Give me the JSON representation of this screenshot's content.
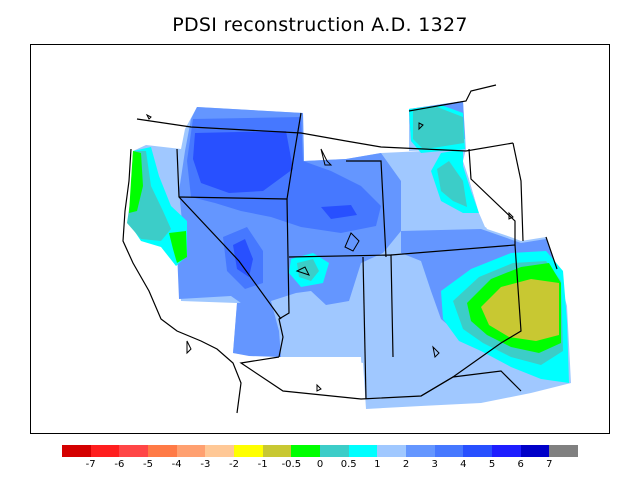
{
  "title": "PDSI reconstruction A.D. 1327",
  "legend": {
    "colors": [
      "#d40000",
      "#ff1e1e",
      "#ff4646",
      "#ff7a46",
      "#ffa070",
      "#ffc896",
      "#ffff00",
      "#c8c832",
      "#00ff00",
      "#3ccdc8",
      "#00ffff",
      "#a0c8ff",
      "#6496ff",
      "#4678ff",
      "#2850ff",
      "#1e1eff",
      "#0000c8",
      "#808080"
    ],
    "tick_labels": [
      "-7",
      "-6",
      "-5",
      "-4",
      "-3",
      "-2",
      "-1",
      "-0.5",
      "0",
      "0.5",
      "1",
      "2",
      "3",
      "4",
      "5",
      "6",
      "7"
    ]
  },
  "map": {
    "region": "Western United States",
    "variable": "PDSI",
    "year": "A.D. 1327",
    "ocean_color": "#ffffff",
    "border_color": "#000000"
  }
}
